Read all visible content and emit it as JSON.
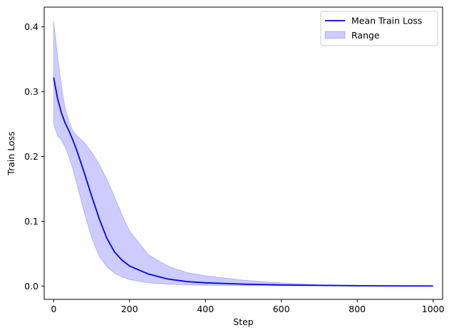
{
  "chart_data": {
    "type": "line",
    "xlabel": "Step",
    "ylabel": "Train Loss",
    "xlim": [
      -25,
      1025
    ],
    "ylim": [
      -0.0205,
      0.4305
    ],
    "x_ticks": [
      0,
      200,
      400,
      600,
      800,
      1000
    ],
    "y_ticks": [
      0.0,
      0.1,
      0.2,
      0.3,
      0.4
    ],
    "x_tick_labels": [
      "0",
      "200",
      "400",
      "600",
      "800",
      "1000"
    ],
    "y_tick_labels": [
      "0.0",
      "0.1",
      "0.2",
      "0.3",
      "0.4"
    ],
    "legend_position": "upper right",
    "grid": false,
    "series": [
      {
        "name": "Mean Train Loss",
        "kind": "line",
        "color": "#0000ff",
        "x": [
          0,
          10,
          20,
          30,
          40,
          50,
          60,
          80,
          100,
          120,
          140,
          160,
          180,
          200,
          250,
          300,
          350,
          400,
          500,
          600,
          700,
          800,
          900,
          1000
        ],
        "y": [
          0.322,
          0.29,
          0.268,
          0.252,
          0.24,
          0.226,
          0.211,
          0.176,
          0.139,
          0.104,
          0.074,
          0.053,
          0.04,
          0.031,
          0.0185,
          0.011,
          0.007,
          0.005,
          0.003,
          0.0018,
          0.0011,
          0.0006,
          0.0003,
          0.0001
        ]
      },
      {
        "name": "Range",
        "kind": "band",
        "color": "#0000ff",
        "x": [
          0,
          10,
          20,
          30,
          40,
          50,
          60,
          80,
          100,
          120,
          140,
          160,
          180,
          200,
          250,
          300,
          350,
          400,
          500,
          600,
          700,
          800,
          900,
          1000
        ],
        "lower": [
          0.25,
          0.232,
          0.225,
          0.215,
          0.2,
          0.182,
          0.16,
          0.115,
          0.075,
          0.046,
          0.03,
          0.02,
          0.014,
          0.01,
          0.005,
          0.003,
          0.0018,
          0.0012,
          0.0007,
          0.0004,
          0.0002,
          0.0001,
          5e-05,
          0.0
        ],
        "upper": [
          0.41,
          0.355,
          0.31,
          0.275,
          0.255,
          0.24,
          0.233,
          0.222,
          0.207,
          0.188,
          0.165,
          0.138,
          0.11,
          0.085,
          0.048,
          0.031,
          0.021,
          0.016,
          0.009,
          0.005,
          0.002,
          0.001,
          0.0005,
          0.0002
        ]
      }
    ]
  }
}
